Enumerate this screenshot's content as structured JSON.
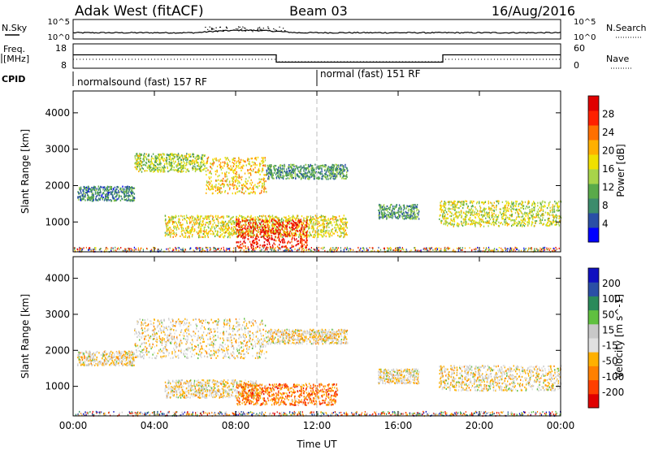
{
  "header": {
    "station": "Adak West (fitACF)",
    "beam": "Beam 03",
    "date": "16/Aug/2016"
  },
  "top_panels": {
    "nsky_label": "N.Sky",
    "nsky_ticks": [
      "10^5",
      "10^0"
    ],
    "nsearch_label": "N.Search",
    "nsearch_ticks": [
      "10^5",
      "10^0"
    ],
    "freq_label_1": "Freq.",
    "freq_label_2": "[MHz]",
    "freq_ticks": [
      "18",
      "8"
    ],
    "nave_label": "Nave",
    "nave_ticks": [
      "60",
      "0"
    ],
    "cpid_label": "CPID",
    "cpid_segments": [
      {
        "label": "normalsound (fast) 157 RF",
        "start": "00:00",
        "end": "12:00"
      },
      {
        "label": "normal (fast) 151 RF",
        "start": "12:00",
        "end": "24:00"
      }
    ],
    "freq_step": {
      "high_mhz": 13.5,
      "low_mhz": 10.5,
      "low_start_h": 10.0,
      "low_end_h": 18.2
    }
  },
  "chart_data": [
    {
      "type": "heatmap",
      "title": "",
      "xlabel": "",
      "ylabel": "Slant Range [km]",
      "x_ticks": [
        "00:00",
        "04:00",
        "08:00",
        "12:00",
        "16:00",
        "20:00",
        "00:00"
      ],
      "y_ticks": [
        "1000",
        "2000",
        "3000",
        "4000"
      ],
      "xlim_hours": [
        0,
        24
      ],
      "ylim_km": [
        180,
        4600
      ],
      "colorbar": {
        "label": "Power [dB]",
        "ticks": [
          "28",
          "24",
          "20",
          "16",
          "12",
          "8",
          "4"
        ],
        "colors": [
          "#0000ff",
          "#2a4fa6",
          "#3c8c6c",
          "#5aaa4a",
          "#a8d44a",
          "#f0e000",
          "#ffb000",
          "#ff7000",
          "#ff2000",
          "#e00000"
        ]
      },
      "echo_regions": [
        {
          "t_start": 0.2,
          "t_end": 3.0,
          "r_low": 1600,
          "r_high": 2000,
          "level": 0.25
        },
        {
          "t_start": 3.0,
          "t_end": 6.5,
          "r_low": 2400,
          "r_high": 2900,
          "level": 0.45
        },
        {
          "t_start": 6.5,
          "t_end": 9.5,
          "r_low": 1800,
          "r_high": 2800,
          "level": 0.6
        },
        {
          "t_start": 9.5,
          "t_end": 13.5,
          "r_low": 2200,
          "r_high": 2600,
          "level": 0.3
        },
        {
          "t_start": 4.5,
          "t_end": 13.5,
          "r_low": 600,
          "r_high": 1200,
          "level": 0.55
        },
        {
          "t_start": 8.0,
          "t_end": 11.5,
          "r_low": 300,
          "r_high": 1100,
          "level": 0.9
        },
        {
          "t_start": 15.0,
          "t_end": 17.0,
          "r_low": 1100,
          "r_high": 1500,
          "level": 0.3
        },
        {
          "t_start": 18.0,
          "t_end": 24.0,
          "r_low": 900,
          "r_high": 1600,
          "level": 0.5
        }
      ]
    },
    {
      "type": "heatmap",
      "title": "",
      "xlabel": "Time UT",
      "ylabel": "Slant Range [km]",
      "x_ticks": [
        "00:00",
        "04:00",
        "08:00",
        "12:00",
        "16:00",
        "20:00",
        "00:00"
      ],
      "y_ticks": [
        "1000",
        "2000",
        "3000",
        "4000"
      ],
      "xlim_hours": [
        0,
        24
      ],
      "ylim_km": [
        180,
        4600
      ],
      "colorbar": {
        "label": "Velocity [m s^-1]",
        "ticks": [
          "200",
          "100",
          "50",
          "15",
          "-15",
          "-50",
          "-100",
          "-200"
        ],
        "colors": [
          "#e00000",
          "#ff4000",
          "#ff8000",
          "#ffb000",
          "#e0e0e0",
          "#c8c8c8",
          "#60c040",
          "#2a8a5a",
          "#2a4fa6",
          "#1010c0"
        ]
      },
      "echo_regions": [
        {
          "t_start": 0.2,
          "t_end": 3.0,
          "r_low": 1600,
          "r_high": 2000,
          "level": 0.45
        },
        {
          "t_start": 3.0,
          "t_end": 9.5,
          "r_low": 1800,
          "r_high": 2900,
          "level": 0.45
        },
        {
          "t_start": 9.5,
          "t_end": 13.5,
          "r_low": 2200,
          "r_high": 2600,
          "level": 0.45
        },
        {
          "t_start": 4.5,
          "t_end": 9.0,
          "r_low": 700,
          "r_high": 1200,
          "level": 0.45
        },
        {
          "t_start": 8.0,
          "t_end": 13.0,
          "r_low": 500,
          "r_high": 1100,
          "level": 0.25
        },
        {
          "t_start": 15.0,
          "t_end": 17.0,
          "r_low": 1100,
          "r_high": 1500,
          "level": 0.45
        },
        {
          "t_start": 18.0,
          "t_end": 24.0,
          "r_low": 900,
          "r_high": 1600,
          "level": 0.45
        }
      ]
    }
  ]
}
